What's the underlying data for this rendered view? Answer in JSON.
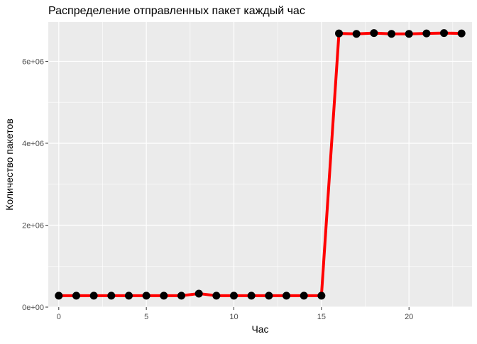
{
  "chart_data": {
    "type": "line",
    "title": "Распределение отправленных пакет каждый час",
    "xlabel": "Час",
    "ylabel": "Количество пакетов",
    "x": [
      0,
      1,
      2,
      3,
      4,
      5,
      6,
      7,
      8,
      9,
      10,
      11,
      12,
      13,
      14,
      15,
      16,
      17,
      18,
      19,
      20,
      21,
      22,
      23
    ],
    "series": [
      {
        "values": [
          280000,
          280000,
          280000,
          280000,
          280000,
          280000,
          280000,
          280000,
          330000,
          280000,
          280000,
          280000,
          280000,
          280000,
          280000,
          280000,
          6680000,
          6670000,
          6690000,
          6670000,
          6670000,
          6680000,
          6690000,
          6680000
        ]
      }
    ],
    "xlim": [
      -0.6,
      23.6
    ],
    "ylim": [
      0,
      6960000
    ],
    "x_ticks": [
      0,
      5,
      10,
      15,
      20
    ],
    "x_tick_labels": [
      "0",
      "5",
      "10",
      "15",
      "20"
    ],
    "y_ticks": [
      0,
      2000000,
      4000000,
      6000000
    ],
    "y_tick_labels": [
      "0e+00",
      "2e+06",
      "4e+06",
      "6e+06"
    ],
    "grid": true,
    "line_color": "#ff0000",
    "point_color": "#000000",
    "panel_color": "#ebebeb",
    "grid_color": "#ffffff"
  }
}
